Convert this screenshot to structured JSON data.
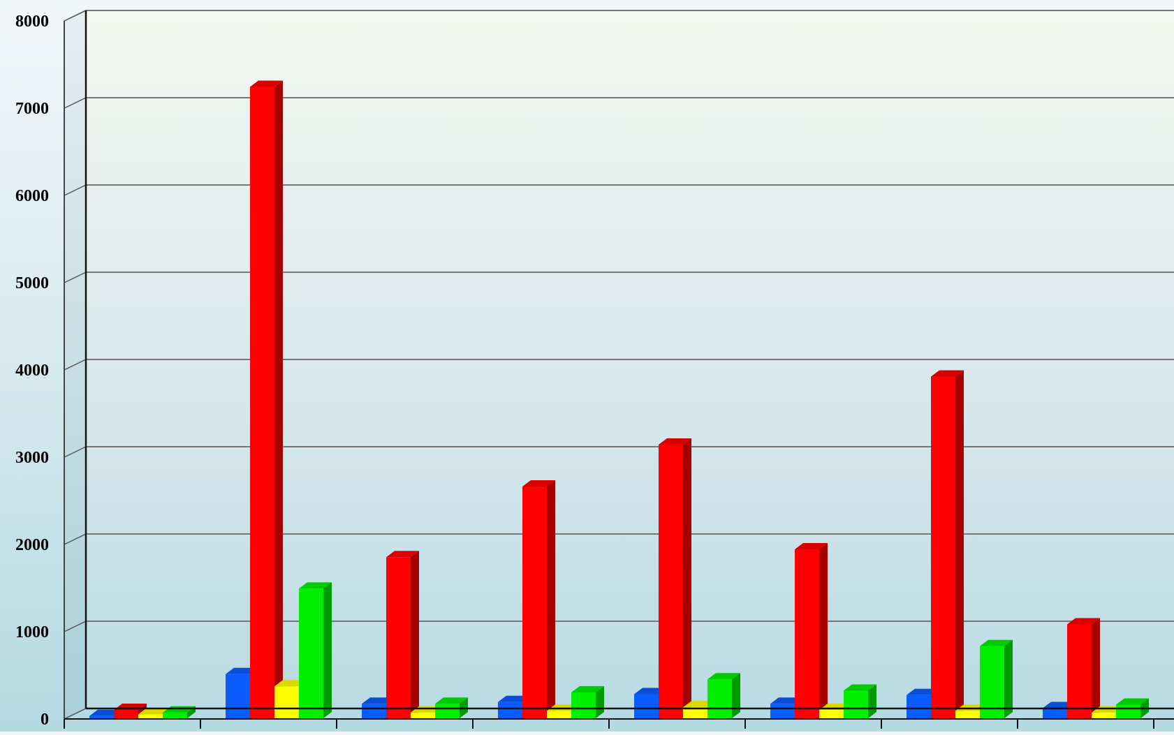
{
  "chart_data": {
    "type": "bar",
    "title": "",
    "xlabel": "",
    "ylabel": "",
    "ylim": [
      0,
      8000
    ],
    "yticks": [
      0,
      1000,
      2000,
      3000,
      4000,
      5000,
      6000,
      7000,
      8000
    ],
    "grid": true,
    "legend": "none",
    "categories": [
      "",
      "",
      "",
      "",
      "",
      "",
      "",
      ""
    ],
    "series": [
      {
        "color": "#0a5cff",
        "values": [
          10,
          490,
          150,
          170,
          260,
          150,
          250,
          100
        ]
      },
      {
        "color": "#ff0000",
        "values": [
          80,
          7220,
          1830,
          2640,
          3120,
          1920,
          3900,
          1060
        ]
      },
      {
        "color": "#ffff00",
        "values": [
          30,
          350,
          50,
          70,
          110,
          80,
          70,
          50
        ]
      },
      {
        "color": "#00ee00",
        "values": [
          50,
          1470,
          150,
          280,
          430,
          300,
          810,
          140
        ]
      }
    ]
  }
}
